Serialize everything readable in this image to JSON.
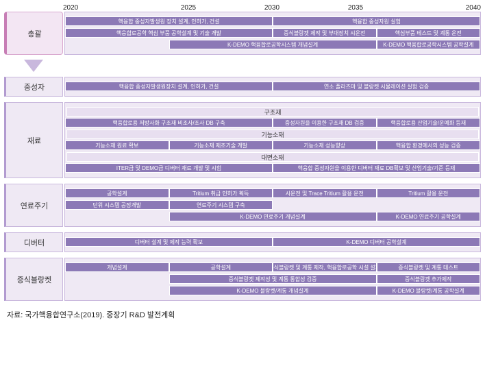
{
  "years": [
    "2020",
    "2025",
    "2030",
    "2035",
    "2040"
  ],
  "colors": {
    "bar": "#8c79b6",
    "row_label_bg": "#efe9f4",
    "row_label_border": "#c9b8dd",
    "highlight_bg": "#f3e6f3",
    "highlight_border": "#d9a8cf",
    "section_bg": "#e8dff0"
  },
  "groups": [
    {
      "label": "총괄",
      "highlight": true,
      "rows": [
        [
          {
            "start": 0,
            "end": 50,
            "text": "핵융합 중성자발생원 장치 설계, 인허가, 건설"
          },
          {
            "start": 50,
            "end": 100,
            "text": "핵융합 중성자원 실험"
          }
        ],
        [
          {
            "start": 0,
            "end": 50,
            "text": "핵융합로공학 핵심 부품 공학설계 및 기술 개발"
          },
          {
            "start": 50,
            "end": 75,
            "text": "증식블랑켓 제작 및 부대장치 시운전"
          },
          {
            "start": 75,
            "end": 100,
            "text": "핵심부품 테스트 및 계통 운전"
          }
        ],
        [
          {
            "start": 25,
            "end": 75,
            "text": "K-DEMO 핵융합로공학시스템 개념설계"
          },
          {
            "start": 75,
            "end": 100,
            "text": "K-DEMO 핵융합로공학시스템 공학설계"
          }
        ]
      ]
    },
    {
      "label": "중성자",
      "rows": [
        [
          {
            "start": 0,
            "end": 50,
            "text": "핵융합 중성자발생원장치 설계, 인허가, 건설"
          },
          {
            "start": 50,
            "end": 100,
            "text": "연소 플라즈마 및 블랑켓 시뮬레이션 실험 검증"
          }
        ]
      ]
    },
    {
      "label": "재료",
      "sections": [
        {
          "title": "구조재",
          "rows": [
            [
              {
                "start": 0,
                "end": 50,
                "text": "핵융합로용 저방사화 구조재 비조사/조사 DB 구축"
              },
              {
                "start": 50,
                "end": 75,
                "text": "중성자원을 이용한 구조재 DB 검증"
              },
              {
                "start": 75,
                "end": 100,
                "text": "핵융합로용 산업기술/운예화 등재"
              }
            ]
          ]
        },
        {
          "title": "기능소재",
          "rows": [
            [
              {
                "start": 0,
                "end": 25,
                "text": "기능소재 원료 확보"
              },
              {
                "start": 25,
                "end": 50,
                "text": "기능소재 제조기술 개발"
              },
              {
                "start": 50,
                "end": 75,
                "text": "기능소재 성능향상"
              },
              {
                "start": 75,
                "end": 100,
                "text": "핵융합 환경에서의 성능 검증"
              }
            ]
          ]
        },
        {
          "title": "대면소재",
          "rows": [
            [
              {
                "start": 0,
                "end": 50,
                "text": "ITER급 및 DEMO급 디버터 재료 개발 및 시험"
              },
              {
                "start": 50,
                "end": 100,
                "text": "핵융합 중성자원을 이용한 디버터 재료 DB확보 및 산업기술/기준 등재"
              }
            ]
          ]
        }
      ]
    },
    {
      "label": "연료주기",
      "rows": [
        [
          {
            "start": 0,
            "end": 25,
            "text": "공학설계"
          },
          {
            "start": 25,
            "end": 50,
            "text": "Tritium 취급 인허가 획득"
          },
          {
            "start": 50,
            "end": 75,
            "text": "시운전 및 Trace Tritium 활용 운전"
          },
          {
            "start": 75,
            "end": 100,
            "text": "Tritium 활용 운전"
          }
        ],
        [
          {
            "start": 0,
            "end": 25,
            "text": "단위 시스템 공정개발"
          },
          {
            "start": 25,
            "end": 50,
            "text": "연료주기 시스템 구축"
          }
        ],
        [
          {
            "start": 25,
            "end": 75,
            "text": "K-DEMO 연료주기 개념설계"
          },
          {
            "start": 75,
            "end": 100,
            "text": "K-DEMO 연료주기 공학설계"
          }
        ]
      ]
    },
    {
      "label": "디버터",
      "rows": [
        [
          {
            "start": 0,
            "end": 50,
            "text": "디버터 설계 및 제작 능력 확보"
          },
          {
            "start": 50,
            "end": 100,
            "text": "K-DEMO 디버터 공학설계"
          }
        ]
      ]
    },
    {
      "label": "증식블랑켓",
      "rows": [
        [
          {
            "start": 0,
            "end": 25,
            "text": "개념설계"
          },
          {
            "start": 25,
            "end": 50,
            "text": "공학설계"
          },
          {
            "start": 50,
            "end": 75,
            "text": "증식블랑켓 및 계통 제작, 핵융합로공학 시설 설치"
          },
          {
            "start": 75,
            "end": 100,
            "text": "증식블랑켓 및 계통 테스트"
          }
        ],
        [
          {
            "start": 25,
            "end": 75,
            "text": "증식블랑켓 제작성 및 계통 통합성 검증"
          },
          {
            "start": 75,
            "end": 100,
            "text": "증식블랑켓 추가제작"
          }
        ],
        [
          {
            "start": 25,
            "end": 75,
            "text": "K-DEMO 블랑켓/계통 개념설계"
          },
          {
            "start": 75,
            "end": 100,
            "text": "K-DEMO 블랑켓/계통 공학설계"
          }
        ]
      ]
    }
  ],
  "source": "자료: 국가핵융합연구소(2019). 중장기 R&D 발전계획"
}
